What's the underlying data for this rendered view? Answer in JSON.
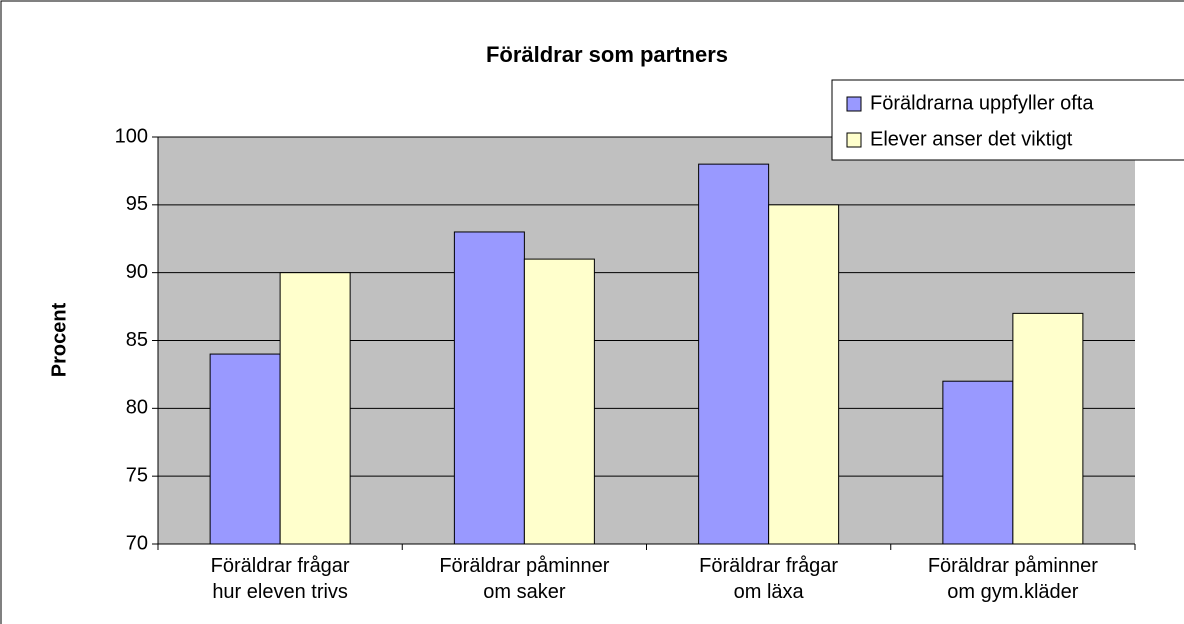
{
  "chart_data": {
    "type": "bar",
    "title": "Föräldrar som partners",
    "y_label": "Procent",
    "categories": [
      "Föräldrar frågar\nhur eleven trivs",
      "Föräldrar påminner\nom saker",
      "Föräldrar frågar\nom läxa",
      "Föräldrar påminner\nom gym.kläder"
    ],
    "series": [
      {
        "name": "Föräldrarna uppfyller ofta",
        "color": "#9999ff",
        "values": [
          84,
          93,
          98,
          82
        ]
      },
      {
        "name": "Elever anser det viktigt",
        "color": "#ffffcc",
        "values": [
          90,
          91,
          95,
          87
        ]
      }
    ],
    "ylim": [
      70,
      100
    ],
    "yticks": [
      70,
      75,
      80,
      85,
      90,
      95,
      100
    ],
    "grid": true,
    "legend": "top-right"
  }
}
